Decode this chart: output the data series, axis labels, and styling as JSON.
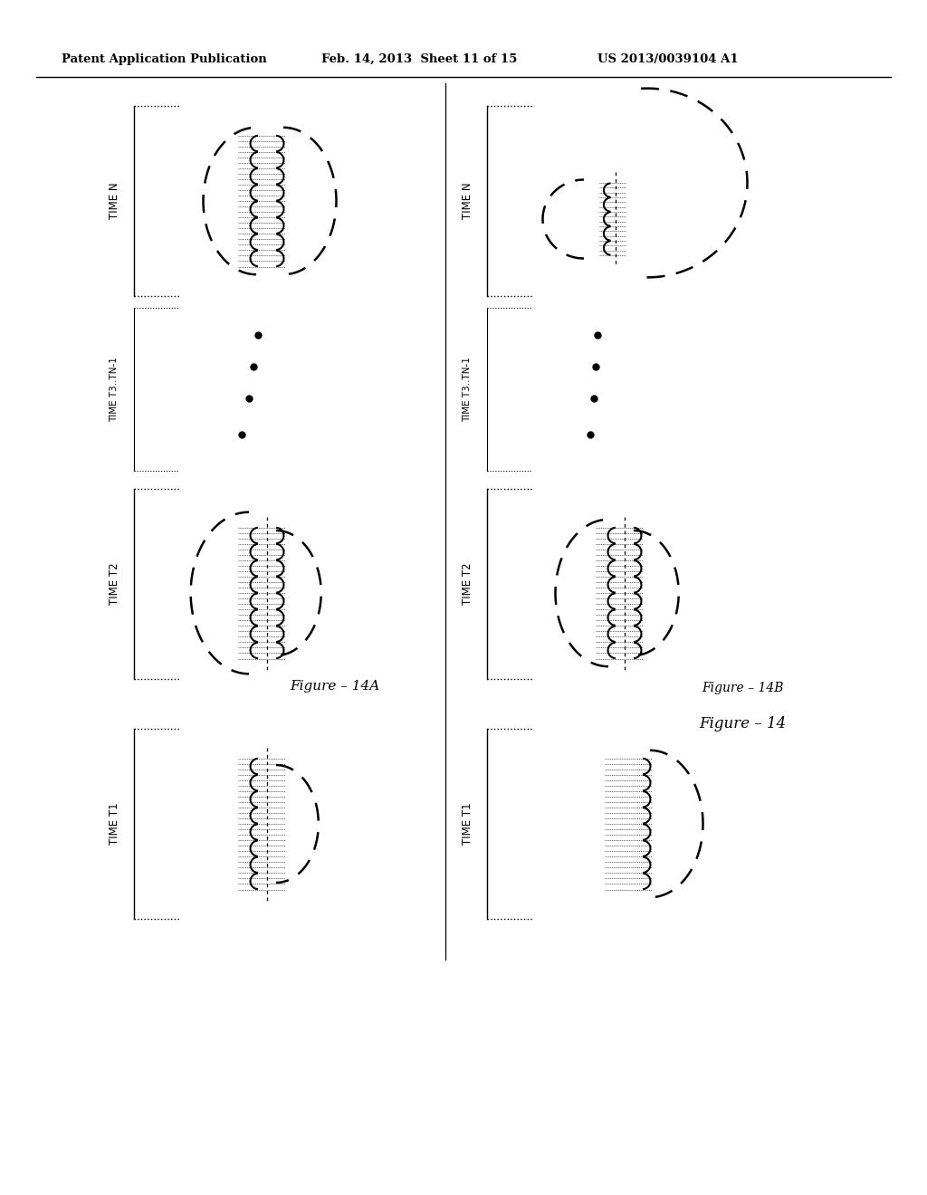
{
  "title_left": "Patent Application Publication",
  "title_mid": "Feb. 14, 2013  Sheet 11 of 15",
  "title_right": "US 2013/0039104 A1",
  "fig14a_label": "Figure – 14A",
  "fig14b_label": "Figure – 14B",
  "fig14_label": "Figure – 14",
  "bg_color": "#ffffff",
  "line_color": "#000000"
}
